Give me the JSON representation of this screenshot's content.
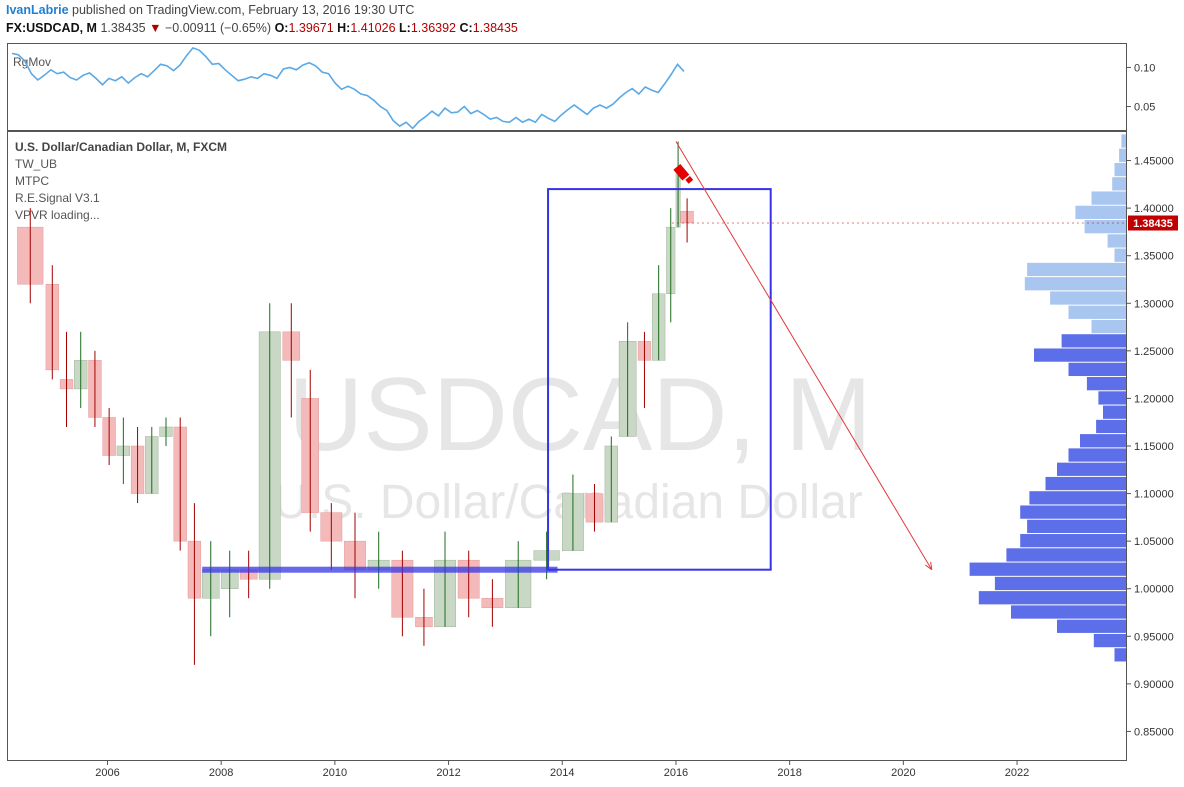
{
  "header": {
    "author": "IvanLabrie",
    "published": "published on TradingView.com, February 13, 2016 19:30 UTC",
    "symbol": "FX:USDCAD, M",
    "last": "1.38435",
    "down_arrow": "▼",
    "change": "−0.00911 (−0.65%)",
    "o_label": "O:",
    "o_value": "1.39671",
    "h_label": "H:",
    "h_value": "1.41026",
    "l_label": "L:",
    "l_value": "1.36392",
    "c_label": "C:",
    "c_value": "1.38435"
  },
  "top_panel": {
    "name": "RgMov",
    "ticks": [
      "0.10",
      "0.05"
    ]
  },
  "main_panel": {
    "title": "U.S. Dollar/Canadian Dollar, M, FXCM",
    "indicators": [
      "TW_UB",
      "MTPC",
      "R.E.Signal V3.1",
      "VPVR loading..."
    ],
    "watermark_big": "USDCAD, M",
    "watermark_small": "U.S. Dollar/Canadian Dollar",
    "price_ticks": [
      "1.45000",
      "1.40000",
      "1.35000",
      "1.30000",
      "1.25000",
      "1.20000",
      "1.15000",
      "1.10000",
      "1.05000",
      "1.00000",
      "0.95000",
      "0.90000",
      "0.85000"
    ],
    "last_price_label": "1.38435"
  },
  "x_axis": {
    "ticks": [
      "2006",
      "2008",
      "2010",
      "2012",
      "2014",
      "2016",
      "2018",
      "2020",
      "2022"
    ]
  },
  "colors": {
    "up_fill": "#c9d8c5",
    "up_wick": "#1d6b1d",
    "down_fill": "#f4b9b9",
    "down_wick": "#a30000",
    "box": "#3535e6",
    "support": "#3535e6",
    "projection": "#e33a3a",
    "rgmov": "#5aa9e6",
    "vol_light": "#a9c6f0",
    "vol_dark": "#5d6fe8",
    "price_badge": "#c00000"
  },
  "chart_data": [
    {
      "type": "line",
      "series": [
        {
          "name": "RgMov",
          "values": [
            0.118,
            0.116,
            0.108,
            0.092,
            0.084,
            0.09,
            0.097,
            0.092,
            0.094,
            0.087,
            0.084,
            0.09,
            0.093,
            0.086,
            0.078,
            0.086,
            0.083,
            0.088,
            0.08,
            0.087,
            0.092,
            0.088,
            0.096,
            0.104,
            0.102,
            0.096,
            0.103,
            0.115,
            0.125,
            0.122,
            0.114,
            0.104,
            0.105,
            0.097,
            0.09,
            0.083,
            0.085,
            0.088,
            0.086,
            0.092,
            0.09,
            0.086,
            0.098,
            0.1,
            0.097,
            0.103,
            0.106,
            0.102,
            0.094,
            0.092,
            0.08,
            0.072,
            0.076,
            0.072,
            0.066,
            0.064,
            0.058,
            0.05,
            0.045,
            0.032,
            0.025,
            0.03,
            0.022,
            0.031,
            0.037,
            0.044,
            0.038,
            0.048,
            0.042,
            0.043,
            0.05,
            0.041,
            0.045,
            0.04,
            0.034,
            0.036,
            0.031,
            0.03,
            0.036,
            0.03,
            0.034,
            0.03,
            0.04,
            0.035,
            0.031,
            0.039,
            0.046,
            0.052,
            0.046,
            0.04,
            0.048,
            0.052,
            0.048,
            0.053,
            0.061,
            0.068,
            0.073,
            0.066,
            0.075,
            0.071,
            0.068,
            0.079,
            0.091,
            0.104,
            0.095
          ]
        }
      ],
      "ylim": [
        0.02,
        0.13
      ],
      "yticks": [
        0.1,
        0.05
      ]
    },
    {
      "type": "candlestick",
      "x_range": [
        "2004-04",
        "2023-12"
      ],
      "ylim": [
        0.82,
        1.48
      ],
      "candles": [
        {
          "t": "2004-06",
          "o": 1.38,
          "h": 1.4,
          "l": 1.3,
          "c": 1.32
        },
        {
          "t": "2004-12",
          "o": 1.32,
          "h": 1.34,
          "l": 1.22,
          "c": 1.23
        },
        {
          "t": "2005-03",
          "o": 1.22,
          "h": 1.27,
          "l": 1.17,
          "c": 1.21
        },
        {
          "t": "2005-06",
          "o": 1.21,
          "h": 1.27,
          "l": 1.19,
          "c": 1.24
        },
        {
          "t": "2005-09",
          "o": 1.24,
          "h": 1.25,
          "l": 1.17,
          "c": 1.18
        },
        {
          "t": "2005-12",
          "o": 1.18,
          "h": 1.19,
          "l": 1.13,
          "c": 1.14
        },
        {
          "t": "2006-03",
          "o": 1.14,
          "h": 1.18,
          "l": 1.11,
          "c": 1.15
        },
        {
          "t": "2006-06",
          "o": 1.15,
          "h": 1.17,
          "l": 1.09,
          "c": 1.1
        },
        {
          "t": "2006-09",
          "o": 1.1,
          "h": 1.17,
          "l": 1.1,
          "c": 1.16
        },
        {
          "t": "2006-12",
          "o": 1.16,
          "h": 1.18,
          "l": 1.15,
          "c": 1.17
        },
        {
          "t": "2007-03",
          "o": 1.17,
          "h": 1.18,
          "l": 1.04,
          "c": 1.05
        },
        {
          "t": "2007-06",
          "o": 1.05,
          "h": 1.09,
          "l": 0.92,
          "c": 0.99
        },
        {
          "t": "2007-09",
          "o": 0.99,
          "h": 1.05,
          "l": 0.95,
          "c": 1.02
        },
        {
          "t": "2008-01",
          "o": 1.0,
          "h": 1.04,
          "l": 0.97,
          "c": 1.02
        },
        {
          "t": "2008-05",
          "o": 1.02,
          "h": 1.04,
          "l": 0.99,
          "c": 1.01
        },
        {
          "t": "2008-09",
          "o": 1.01,
          "h": 1.3,
          "l": 1.0,
          "c": 1.27
        },
        {
          "t": "2009-02",
          "o": 1.27,
          "h": 1.3,
          "l": 1.18,
          "c": 1.24
        },
        {
          "t": "2009-06",
          "o": 1.2,
          "h": 1.23,
          "l": 1.06,
          "c": 1.08
        },
        {
          "t": "2009-10",
          "o": 1.08,
          "h": 1.09,
          "l": 1.02,
          "c": 1.05
        },
        {
          "t": "2010-03",
          "o": 1.05,
          "h": 1.08,
          "l": 0.99,
          "c": 1.02
        },
        {
          "t": "2010-08",
          "o": 1.02,
          "h": 1.06,
          "l": 1.0,
          "c": 1.03
        },
        {
          "t": "2011-01",
          "o": 1.03,
          "h": 1.04,
          "l": 0.95,
          "c": 0.97
        },
        {
          "t": "2011-06",
          "o": 0.97,
          "h": 1.0,
          "l": 0.94,
          "c": 0.96
        },
        {
          "t": "2011-10",
          "o": 0.96,
          "h": 1.06,
          "l": 0.96,
          "c": 1.03
        },
        {
          "t": "2012-03",
          "o": 1.03,
          "h": 1.04,
          "l": 0.97,
          "c": 0.99
        },
        {
          "t": "2012-08",
          "o": 0.99,
          "h": 1.01,
          "l": 0.96,
          "c": 0.98
        },
        {
          "t": "2013-01",
          "o": 0.98,
          "h": 1.05,
          "l": 0.98,
          "c": 1.03
        },
        {
          "t": "2013-07",
          "o": 1.03,
          "h": 1.06,
          "l": 1.01,
          "c": 1.04
        },
        {
          "t": "2014-01",
          "o": 1.04,
          "h": 1.12,
          "l": 1.04,
          "c": 1.1
        },
        {
          "t": "2014-06",
          "o": 1.1,
          "h": 1.11,
          "l": 1.06,
          "c": 1.07
        },
        {
          "t": "2014-10",
          "o": 1.07,
          "h": 1.16,
          "l": 1.07,
          "c": 1.15
        },
        {
          "t": "2015-01",
          "o": 1.16,
          "h": 1.28,
          "l": 1.16,
          "c": 1.26
        },
        {
          "t": "2015-05",
          "o": 1.26,
          "h": 1.27,
          "l": 1.19,
          "c": 1.24
        },
        {
          "t": "2015-08",
          "o": 1.24,
          "h": 1.34,
          "l": 1.24,
          "c": 1.31
        },
        {
          "t": "2015-11",
          "o": 1.31,
          "h": 1.4,
          "l": 1.28,
          "c": 1.38
        },
        {
          "t": "2016-01",
          "o": 1.38,
          "h": 1.47,
          "l": 1.38,
          "c": 1.44
        },
        {
          "t": "2016-02",
          "o": 1.3967,
          "h": 1.4103,
          "l": 1.3639,
          "c": 1.3844
        }
      ],
      "rectangle": {
        "x1": "2013-10",
        "x2": "2017-09",
        "y_top": 1.42,
        "y_bottom": 1.02
      },
      "support_line": {
        "x1": "2007-09",
        "x2": "2013-12",
        "y": 1.02
      },
      "projection_line": {
        "from_t": "2016-01",
        "from_y": 1.47,
        "to_t": "2020-07",
        "to_y": 1.02
      },
      "last_price": 1.38435,
      "volume_profile": [
        {
          "price": 1.47,
          "vol": 0.02,
          "tone": "light"
        },
        {
          "price": 1.455,
          "vol": 0.03,
          "tone": "light"
        },
        {
          "price": 1.44,
          "vol": 0.05,
          "tone": "light"
        },
        {
          "price": 1.425,
          "vol": 0.06,
          "tone": "light"
        },
        {
          "price": 1.41,
          "vol": 0.15,
          "tone": "light"
        },
        {
          "price": 1.395,
          "vol": 0.22,
          "tone": "light"
        },
        {
          "price": 1.38,
          "vol": 0.18,
          "tone": "light"
        },
        {
          "price": 1.365,
          "vol": 0.08,
          "tone": "light"
        },
        {
          "price": 1.35,
          "vol": 0.05,
          "tone": "light"
        },
        {
          "price": 1.335,
          "vol": 0.43,
          "tone": "light"
        },
        {
          "price": 1.32,
          "vol": 0.44,
          "tone": "light"
        },
        {
          "price": 1.305,
          "vol": 0.33,
          "tone": "light"
        },
        {
          "price": 1.29,
          "vol": 0.25,
          "tone": "light"
        },
        {
          "price": 1.275,
          "vol": 0.15,
          "tone": "light"
        },
        {
          "price": 1.26,
          "vol": 0.28,
          "tone": "dark"
        },
        {
          "price": 1.245,
          "vol": 0.4,
          "tone": "dark"
        },
        {
          "price": 1.23,
          "vol": 0.25,
          "tone": "dark"
        },
        {
          "price": 1.215,
          "vol": 0.17,
          "tone": "dark"
        },
        {
          "price": 1.2,
          "vol": 0.12,
          "tone": "dark"
        },
        {
          "price": 1.185,
          "vol": 0.1,
          "tone": "dark"
        },
        {
          "price": 1.17,
          "vol": 0.13,
          "tone": "dark"
        },
        {
          "price": 1.155,
          "vol": 0.2,
          "tone": "dark"
        },
        {
          "price": 1.14,
          "vol": 0.25,
          "tone": "dark"
        },
        {
          "price": 1.125,
          "vol": 0.3,
          "tone": "dark"
        },
        {
          "price": 1.11,
          "vol": 0.35,
          "tone": "dark"
        },
        {
          "price": 1.095,
          "vol": 0.42,
          "tone": "dark"
        },
        {
          "price": 1.08,
          "vol": 0.46,
          "tone": "dark"
        },
        {
          "price": 1.065,
          "vol": 0.43,
          "tone": "dark"
        },
        {
          "price": 1.05,
          "vol": 0.46,
          "tone": "dark"
        },
        {
          "price": 1.035,
          "vol": 0.52,
          "tone": "dark"
        },
        {
          "price": 1.02,
          "vol": 0.68,
          "tone": "dark"
        },
        {
          "price": 1.005,
          "vol": 0.57,
          "tone": "dark"
        },
        {
          "price": 0.99,
          "vol": 0.64,
          "tone": "dark"
        },
        {
          "price": 0.975,
          "vol": 0.5,
          "tone": "dark"
        },
        {
          "price": 0.96,
          "vol": 0.3,
          "tone": "dark"
        },
        {
          "price": 0.945,
          "vol": 0.14,
          "tone": "dark"
        },
        {
          "price": 0.93,
          "vol": 0.05,
          "tone": "dark"
        }
      ]
    }
  ]
}
